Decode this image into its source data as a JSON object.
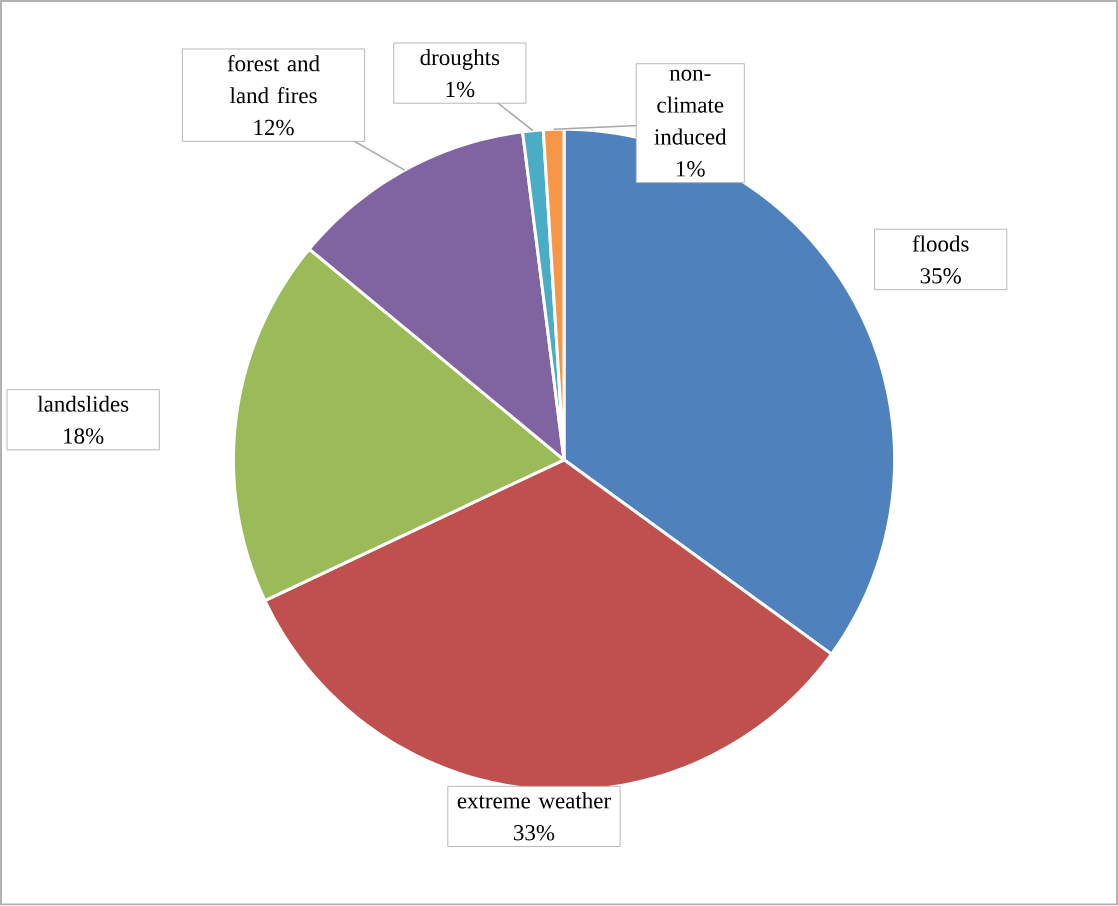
{
  "chart_data": {
    "type": "pie",
    "categories": [
      "floods",
      "extreme weather",
      "landslides",
      "forest and land fires",
      "droughts",
      "non-climate induced"
    ],
    "values": [
      35,
      33,
      18,
      12,
      1,
      1
    ],
    "value_labels": [
      "35%",
      "33%",
      "18%",
      "12%",
      "1%",
      "1%"
    ],
    "colors": [
      "#4f81bd",
      "#c0504d",
      "#9bbb59",
      "#8064a2",
      "#4bacc6",
      "#f79646"
    ]
  }
}
